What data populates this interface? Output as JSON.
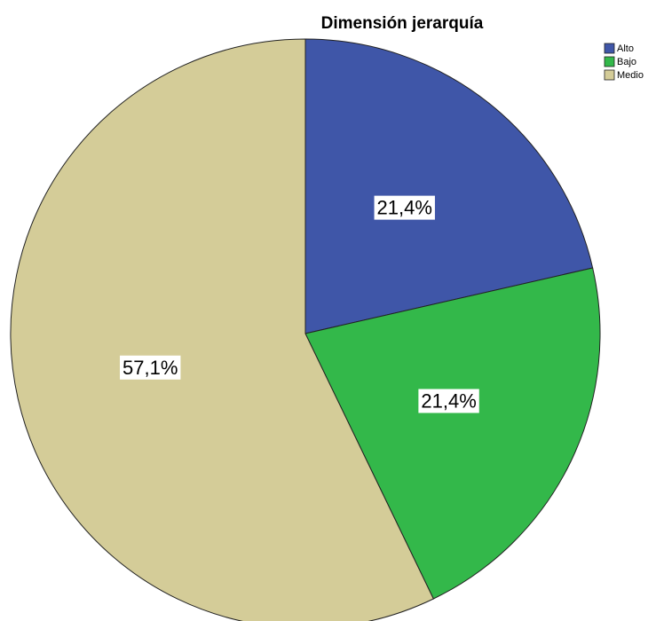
{
  "chart_data": {
    "type": "pie",
    "title": "Dimensión jerarquía",
    "categories": [
      "Alto",
      "Bajo",
      "Medio"
    ],
    "values": [
      21.4,
      21.4,
      57.1
    ],
    "value_labels": [
      "21,4%",
      "21,4%",
      "57,1%"
    ],
    "colors": [
      "#3f56a8",
      "#33b84a",
      "#d4cc98"
    ],
    "legend": "top-right"
  }
}
